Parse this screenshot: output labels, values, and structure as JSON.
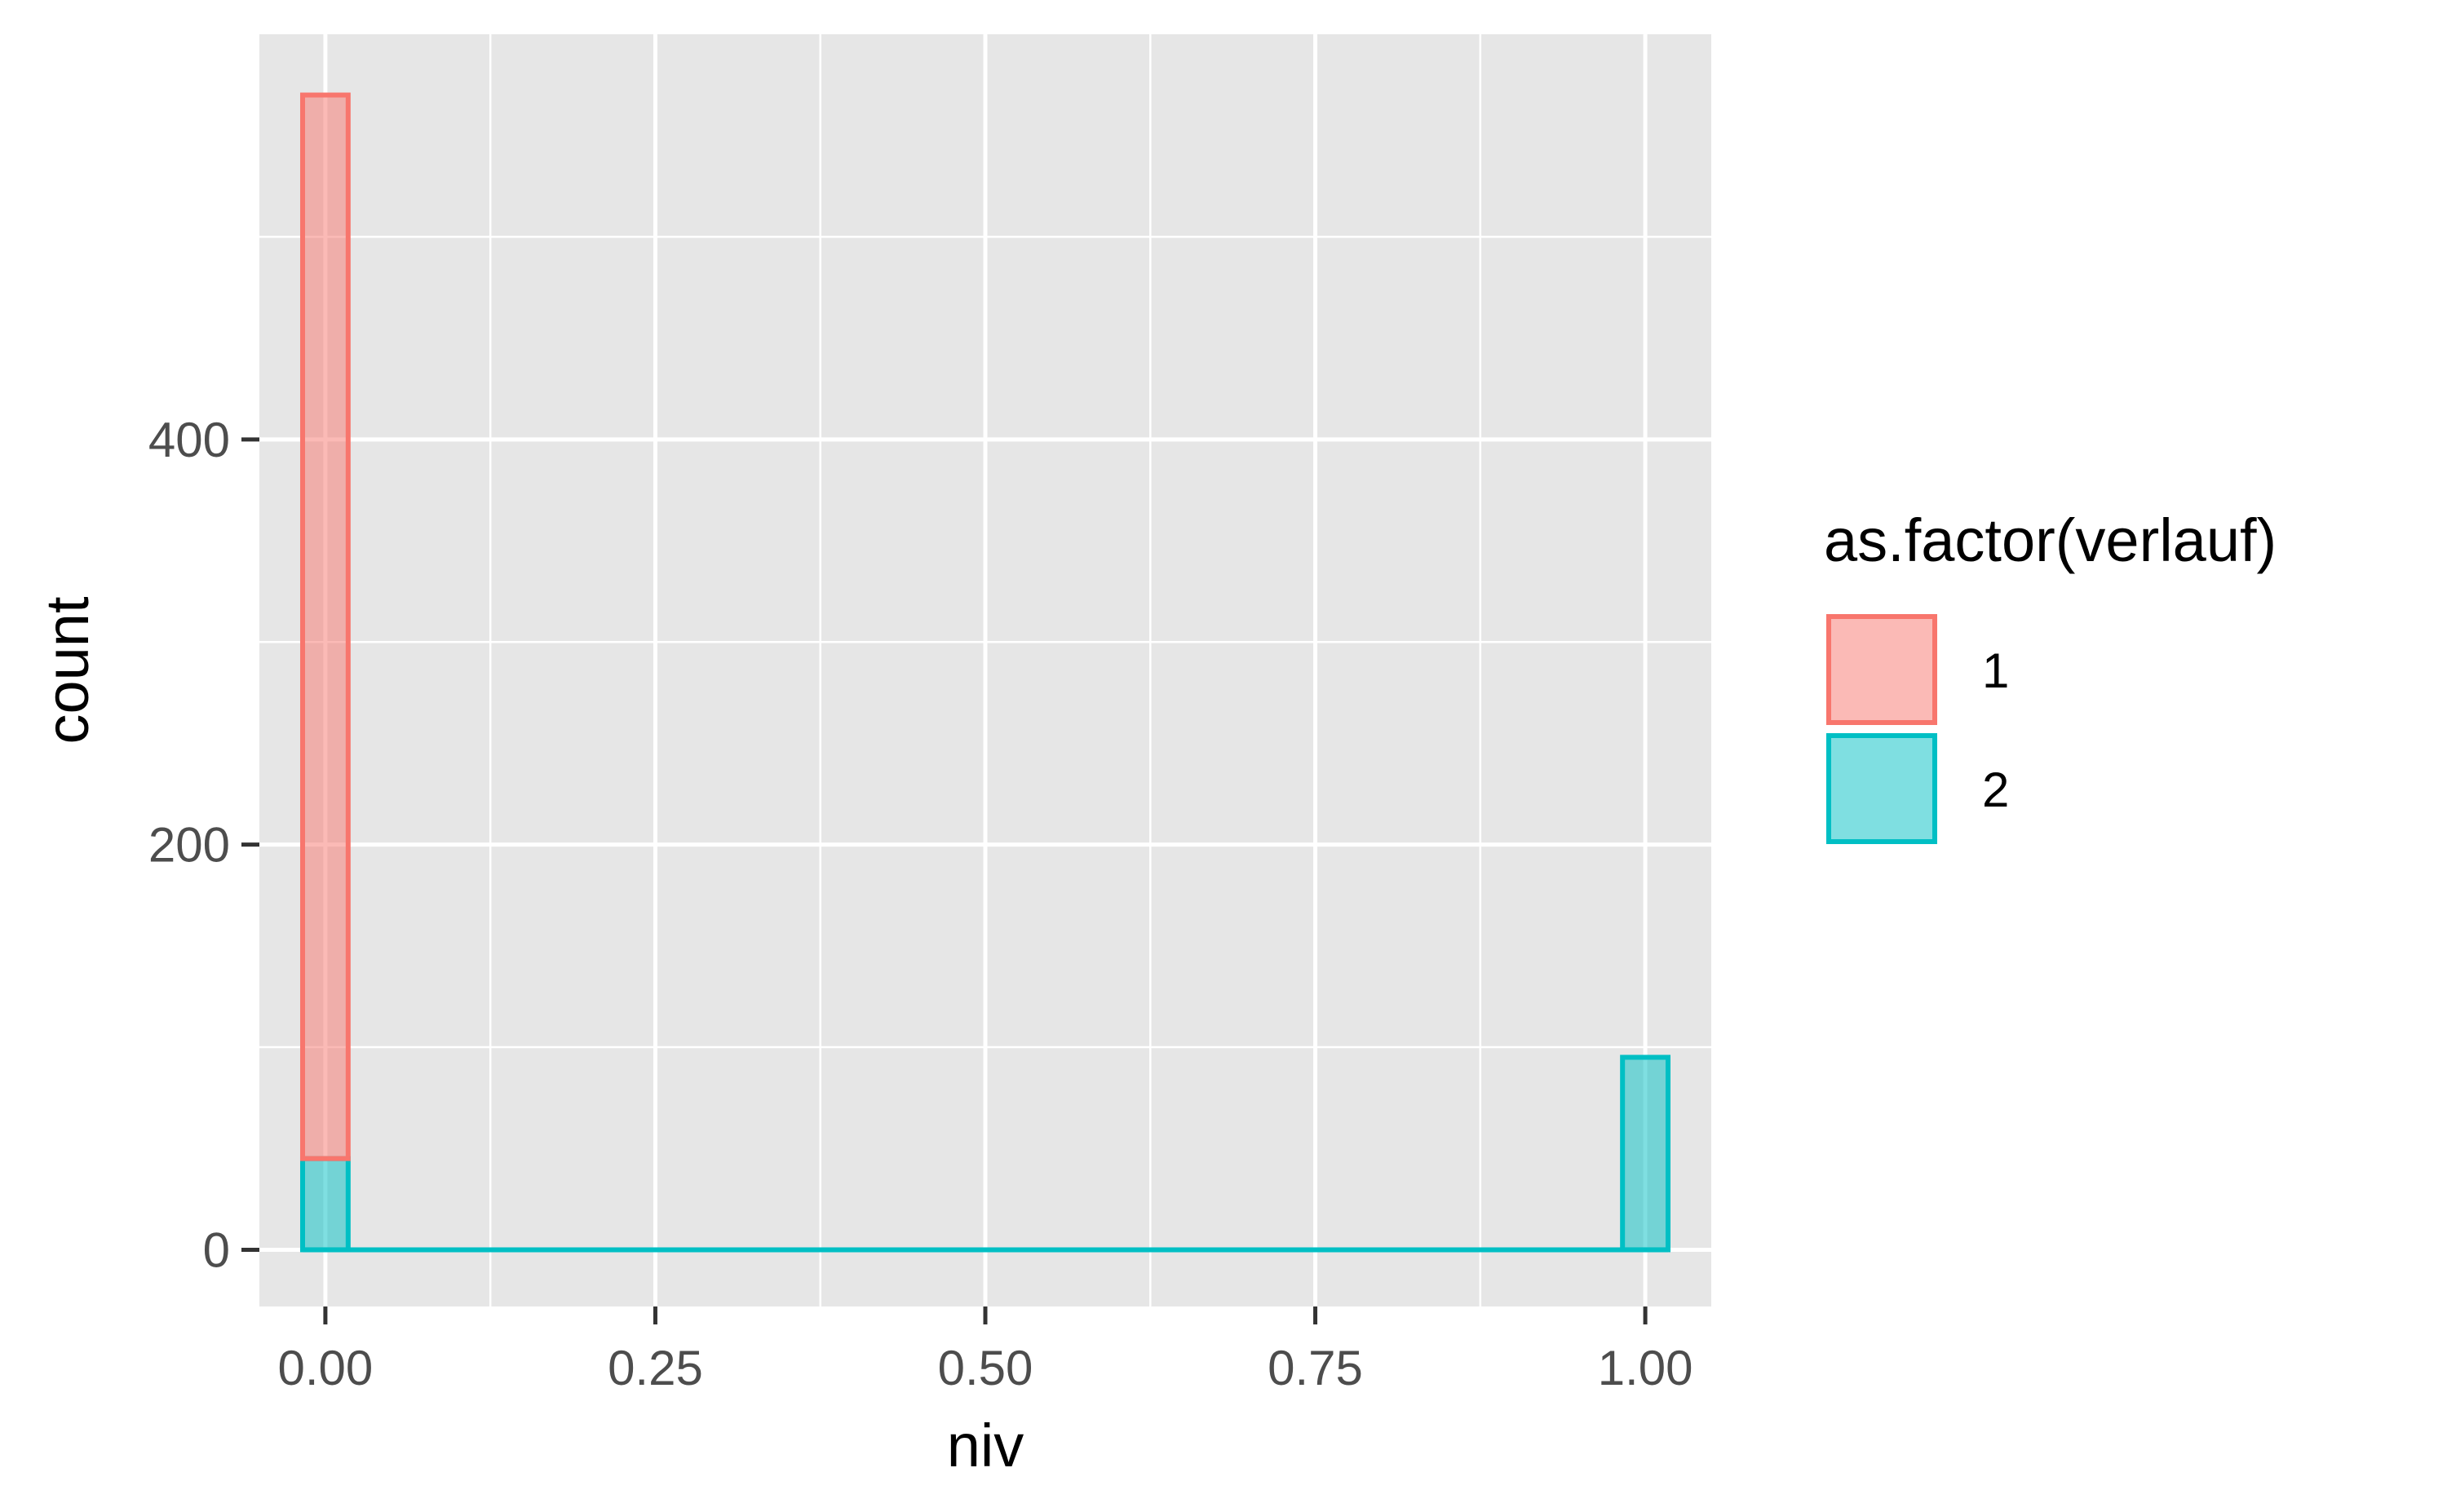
{
  "chart_data": {
    "type": "bar",
    "subtype": "stacked-histogram",
    "xlabel": "niv",
    "ylabel": "count",
    "xlim": [
      -0.05,
      1.05
    ],
    "ylim": [
      -28,
      600
    ],
    "x_ticks": [
      0.0,
      0.25,
      0.5,
      0.75,
      1.0
    ],
    "x_tick_labels": [
      "0.00",
      "0.25",
      "0.50",
      "0.75",
      "1.00"
    ],
    "y_ticks": [
      0,
      200,
      400
    ],
    "y_tick_labels": [
      "0",
      "200",
      "400"
    ],
    "grid": true,
    "legend": {
      "title": "as.factor(verlauf)",
      "position": "right",
      "entries": [
        "1",
        "2"
      ]
    },
    "bin_width": 0.0345,
    "bins": [
      0.0,
      1.0
    ],
    "series": [
      {
        "name": "1",
        "color": "#F8766D",
        "values": [
          525,
          0
        ]
      },
      {
        "name": "2",
        "color": "#00BFC4",
        "values": [
          45,
          95
        ]
      }
    ]
  }
}
